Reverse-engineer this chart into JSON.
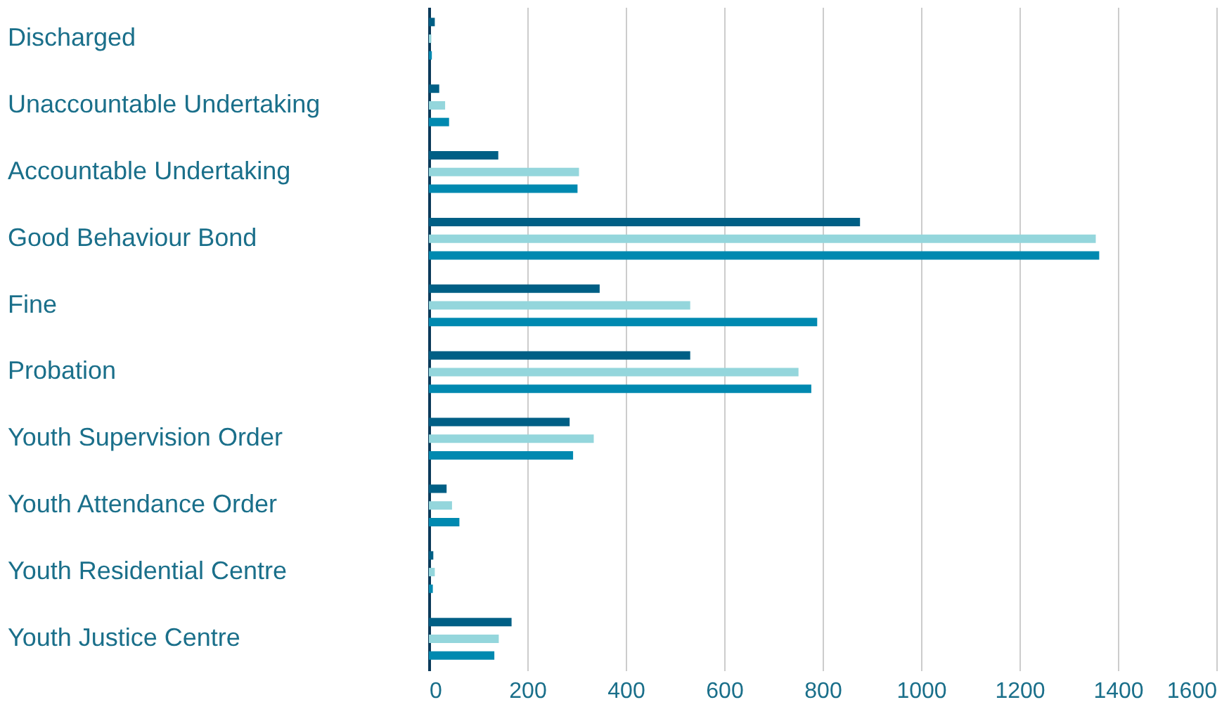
{
  "chart_data": {
    "type": "bar",
    "orientation": "horizontal",
    "categories": [
      "Discharged",
      "Unaccountable Undertaking",
      "Accountable Undertaking",
      "Good Behaviour Bond",
      "Fine",
      "Probation",
      "Youth Supervision Order",
      "Youth Attendance Order",
      "Youth Residential Centre",
      "Youth Justice Centre"
    ],
    "series": [
      {
        "color": "#005f85",
        "values": [
          12,
          21,
          141,
          876,
          347,
          531,
          286,
          36,
          9,
          168
        ]
      },
      {
        "color": "#94d6dc",
        "values": [
          5,
          33,
          305,
          1355,
          531,
          751,
          335,
          47,
          12,
          142
        ]
      },
      {
        "color": "#0089b0",
        "values": [
          6,
          41,
          302,
          1362,
          789,
          777,
          293,
          62,
          8,
          133
        ]
      }
    ],
    "xlim": [
      0,
      1600
    ],
    "xticks": [
      0,
      200,
      400,
      600,
      800,
      1000,
      1200,
      1400,
      1600
    ],
    "grid": "x",
    "legend": false
  }
}
